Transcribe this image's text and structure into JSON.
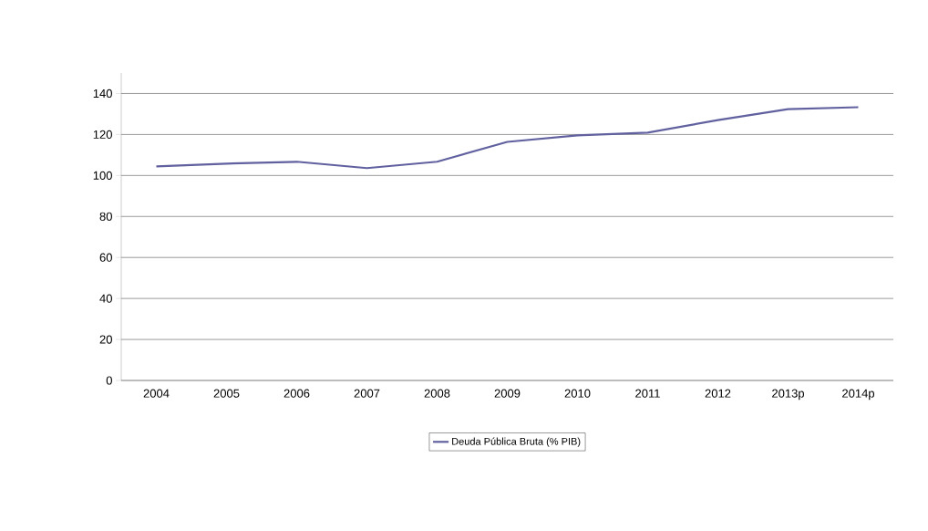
{
  "chart_data": {
    "type": "line",
    "categories": [
      "2004",
      "2005",
      "2006",
      "2007",
      "2008",
      "2009",
      "2010",
      "2011",
      "2012",
      "2013p",
      "2014p"
    ],
    "series": [
      {
        "name": "Deuda Pública Bruta (% PIB)",
        "color": "#6161a0",
        "values": [
          104.4,
          105.8,
          106.7,
          103.6,
          106.7,
          116.4,
          119.6,
          120.9,
          127.0,
          132.4,
          133.3
        ]
      }
    ],
    "ylim": [
      0,
      150
    ],
    "yticks": [
      0,
      20,
      40,
      60,
      80,
      100,
      120,
      140
    ],
    "grid": "y",
    "legend": "bottom",
    "marker": "none",
    "line_style": "solid"
  }
}
